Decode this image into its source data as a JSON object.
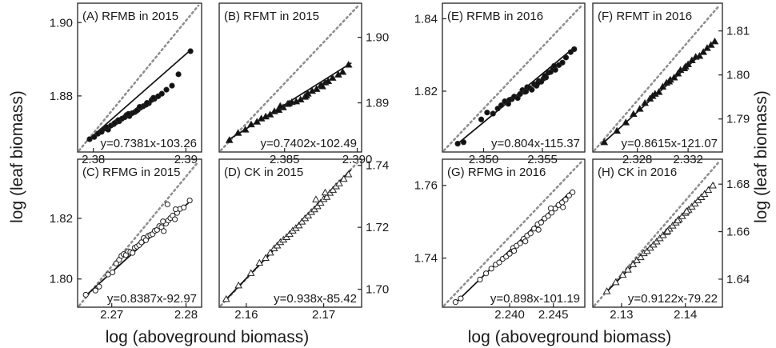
{
  "figure": {
    "xlabel_left": "log (aboveground biomass)",
    "xlabel_right": "log (aboveground biomass)",
    "ylabel_left": "log (leaf biomass)",
    "ylabel_right": "log (leaf biomass)"
  },
  "chart_data": [
    {
      "type": "scatter",
      "title": "(A) RFMB in 2015",
      "equation": "y=0.7381x-103.26",
      "marker": "filled-circle",
      "xlim": [
        2.3783,
        2.3917
      ],
      "ylim": [
        1.8647,
        1.9053
      ],
      "xticks": [
        2.38,
        2.39
      ],
      "yticks": [
        1.88,
        1.9
      ],
      "xtick_side": "bottom",
      "ytick_side": "left",
      "fit": {
        "x": [
          2.3793,
          2.3905
        ],
        "y": [
          1.8677,
          1.8925
        ]
      },
      "x": [
        2.3796,
        2.3801,
        2.3805,
        2.3809,
        2.3812,
        2.3816,
        2.3819,
        2.3822,
        2.3825,
        2.3828,
        2.3831,
        2.3834,
        2.3836,
        2.3839,
        2.3842,
        2.3845,
        2.3848,
        2.3851,
        2.3854,
        2.3857,
        2.386,
        2.3863,
        2.3866,
        2.387,
        2.3874,
        2.3879,
        2.3885,
        2.3892,
        2.3905,
        2.3814,
        2.3827,
        2.3838,
        2.3847,
        2.3858,
        2.3865,
        2.3823,
        2.385
      ],
      "y": [
        1.8682,
        1.8688,
        1.8697,
        1.8702,
        1.8711,
        1.8708,
        1.8719,
        1.8723,
        1.8729,
        1.8731,
        1.8738,
        1.8742,
        1.8748,
        1.8745,
        1.8753,
        1.8756,
        1.8762,
        1.8768,
        1.8772,
        1.8776,
        1.878,
        1.8789,
        1.8792,
        1.8799,
        1.8806,
        1.8817,
        1.8828,
        1.8859,
        1.8922,
        1.8715,
        1.8734,
        1.8751,
        1.876,
        1.8781,
        1.8795,
        1.8726,
        1.877
      ]
    },
    {
      "type": "scatter",
      "title": "(B) RFMT in 2015",
      "equation": "y=0.7402x-102.49",
      "marker": "filled-triangle",
      "xlim": [
        2.3805,
        2.3903
      ],
      "ylim": [
        1.8825,
        1.9052
      ],
      "xticks": [
        2.385,
        2.39
      ],
      "yticks": [
        1.89,
        1.9
      ],
      "xtick_side": "bottom",
      "ytick_side": "right",
      "fit": {
        "x": [
          2.3811,
          2.3896
        ],
        "y": [
          1.8843,
          1.8961
        ]
      },
      "x": [
        2.3812,
        2.3818,
        2.3823,
        2.3827,
        2.3831,
        2.3834,
        2.3837,
        2.384,
        2.3843,
        2.3846,
        2.3849,
        2.3852,
        2.3855,
        2.3858,
        2.3861,
        2.3864,
        2.3866,
        2.3869,
        2.3872,
        2.3875,
        2.3878,
        2.388,
        2.3883,
        2.3887,
        2.389,
        2.3894,
        2.3847,
        2.3853,
        2.3865,
        2.3876
      ],
      "y": [
        1.8843,
        1.8854,
        1.8859,
        1.8867,
        1.8871,
        1.8876,
        1.8879,
        1.8882,
        1.8887,
        1.8889,
        1.8893,
        1.8898,
        1.8901,
        1.8902,
        1.8905,
        1.8909,
        1.8914,
        1.8918,
        1.8921,
        1.8927,
        1.8931,
        1.8933,
        1.8938,
        1.8943,
        1.8947,
        1.8958,
        1.8895,
        1.8899,
        1.8911,
        1.8925
      ]
    },
    {
      "type": "scatter",
      "title": "(C) RFMG in 2015",
      "equation": "y=0.8387x-92.97",
      "marker": "open-circle",
      "xlim": [
        2.2654,
        2.2821
      ],
      "ylim": [
        1.7907,
        1.8395
      ],
      "xticks": [
        2.27,
        2.28
      ],
      "yticks": [
        1.8,
        1.82
      ],
      "xtick_side": "bottom",
      "ytick_side": "left",
      "fit": {
        "x": [
          2.2665,
          2.2805
        ],
        "y": [
          1.7945,
          1.8255
        ]
      },
      "x": [
        2.2665,
        2.2678,
        2.2683,
        2.2695,
        2.2701,
        2.2706,
        2.271,
        2.2713,
        2.2716,
        2.2719,
        2.2722,
        2.2725,
        2.2728,
        2.2731,
        2.2734,
        2.2737,
        2.274,
        2.2743,
        2.2746,
        2.2749,
        2.2752,
        2.2755,
        2.2758,
        2.2761,
        2.2764,
        2.2767,
        2.277,
        2.2773,
        2.2776,
        2.2779,
        2.2782,
        2.2785,
        2.2788,
        2.2792,
        2.2797,
        2.2805,
        2.2775,
        2.2786,
        2.2769
      ],
      "y": [
        1.7948,
        1.7962,
        1.7975,
        1.8015,
        1.8022,
        1.8051,
        1.8063,
        1.8076,
        1.8082,
        1.8079,
        1.8091,
        1.8089,
        1.8086,
        1.8103,
        1.8107,
        1.8112,
        1.8121,
        1.8135,
        1.8128,
        1.8142,
        1.8145,
        1.8148,
        1.8159,
        1.8162,
        1.8174,
        1.8171,
        1.8158,
        1.8183,
        1.8193,
        1.8201,
        1.8209,
        1.8197,
        1.8218,
        1.8231,
        1.8236,
        1.8259,
        1.8246,
        1.823,
        1.819
      ]
    },
    {
      "type": "scatter",
      "title": "(D) CK in 2015",
      "equation": "y=0.938x-85.42",
      "marker": "open-triangle",
      "xlim": [
        2.1565,
        2.1749
      ],
      "ylim": [
        1.6942,
        1.742
      ],
      "xticks": [
        2.16,
        2.17
      ],
      "yticks": [
        1.7,
        1.72,
        1.74
      ],
      "xtick_side": "bottom",
      "ytick_side": "right",
      "fit": {
        "x": [
          2.1573,
          2.1735
        ],
        "y": [
          1.6965,
          1.7385
        ]
      },
      "x": [
        2.1574,
        2.159,
        2.1606,
        2.1617,
        2.1625,
        2.1631,
        2.1636,
        2.164,
        2.1644,
        2.1648,
        2.1652,
        2.1656,
        2.166,
        2.1664,
        2.1668,
        2.1672,
        2.1676,
        2.168,
        2.1684,
        2.1688,
        2.1692,
        2.1696,
        2.17,
        2.1704,
        2.1708,
        2.1712,
        2.1716,
        2.172,
        2.1726,
        2.1732,
        2.169,
        2.1702
      ],
      "y": [
        1.6968,
        1.7012,
        1.7052,
        1.7085,
        1.7101,
        1.7118,
        1.7132,
        1.7141,
        1.7152,
        1.716,
        1.7168,
        1.7178,
        1.7189,
        1.7197,
        1.7206,
        1.7218,
        1.7229,
        1.7238,
        1.7249,
        1.7258,
        1.7268,
        1.7279,
        1.7291,
        1.7298,
        1.7311,
        1.7321,
        1.7332,
        1.7342,
        1.7356,
        1.7371,
        1.729,
        1.7312
      ]
    },
    {
      "type": "scatter",
      "title": "(E) RFMB in 2016",
      "equation": "y=0.804x-115.37",
      "marker": "filled-circle",
      "xlim": [
        2.3465,
        2.3586
      ],
      "ylim": [
        1.8032,
        1.8443
      ],
      "xticks": [
        2.35,
        2.355
      ],
      "yticks": [
        1.82,
        1.84
      ],
      "xtick_side": "bottom",
      "ytick_side": "left",
      "fit": {
        "x": [
          2.3478,
          2.3576
        ],
        "y": [
          1.8055,
          1.8318
        ]
      },
      "x": [
        2.3478,
        2.3483,
        2.3498,
        2.3503,
        2.3508,
        2.3512,
        2.3515,
        2.3518,
        2.3521,
        2.3524,
        2.3526,
        2.3529,
        2.3531,
        2.3533,
        2.3535,
        2.3537,
        2.3539,
        2.3541,
        2.3543,
        2.3545,
        2.3547,
        2.3549,
        2.3551,
        2.3553,
        2.3555,
        2.3557,
        2.3559,
        2.3561,
        2.3564,
        2.3567,
        2.357,
        2.3574,
        2.3577,
        2.3522,
        2.3536,
        2.3546,
        2.3552,
        2.356
      ],
      "y": [
        1.8055,
        1.8059,
        1.8122,
        1.8141,
        1.8138,
        1.8152,
        1.8161,
        1.8172,
        1.8165,
        1.8178,
        1.8185,
        1.8181,
        1.8192,
        1.8203,
        1.8198,
        1.8211,
        1.8209,
        1.8204,
        1.8219,
        1.8215,
        1.8228,
        1.8226,
        1.8235,
        1.8238,
        1.8251,
        1.8253,
        1.8262,
        1.8259,
        1.8272,
        1.8279,
        1.8293,
        1.8308,
        1.8316,
        1.8176,
        1.8199,
        1.8222,
        1.8242,
        1.827
      ]
    },
    {
      "type": "scatter",
      "title": "(F) RFMT in 2016",
      "equation": "y=0.8615x-121.07",
      "marker": "filled-triangle",
      "xlim": [
        2.3245,
        2.3347
      ],
      "ylim": [
        1.7825,
        1.8163
      ],
      "xticks": [
        2.328,
        2.332
      ],
      "yticks": [
        1.79,
        1.8,
        1.81
      ],
      "xtick_side": "bottom",
      "ytick_side": "right",
      "fit": {
        "x": [
          2.3253,
          2.3342
        ],
        "y": [
          1.7845,
          1.8078
        ]
      },
      "x": [
        2.3254,
        2.3264,
        2.3271,
        2.3277,
        2.3282,
        2.3286,
        2.329,
        2.3294,
        2.3297,
        2.33,
        2.3303,
        2.3306,
        2.3309,
        2.3312,
        2.3314,
        2.3317,
        2.332,
        2.3323,
        2.3326,
        2.3329,
        2.3332,
        2.3335,
        2.3338,
        2.3341,
        2.3292,
        2.3305,
        2.3318
      ],
      "y": [
        1.7847,
        1.7873,
        1.7892,
        1.7911,
        1.7923,
        1.7936,
        1.7946,
        1.7957,
        1.7961,
        1.7973,
        1.7982,
        1.7989,
        1.7994,
        1.8003,
        1.8011,
        1.8015,
        1.8024,
        1.8033,
        1.8041,
        1.8043,
        1.8052,
        1.8061,
        1.8068,
        1.8076,
        1.7952,
        1.7985,
        1.8019
      ]
    },
    {
      "type": "scatter",
      "title": "(G) RFMG in 2016",
      "equation": "y=0.898x-101.19",
      "marker": "open-circle",
      "xlim": [
        2.2323,
        2.2486
      ],
      "ylim": [
        1.7265,
        1.7672
      ],
      "xticks": [
        2.24,
        2.245
      ],
      "yticks": [
        1.74,
        1.76
      ],
      "xtick_side": "bottom",
      "ytick_side": "left",
      "fit": {
        "x": [
          2.2338,
          2.2472
        ],
        "y": [
          1.7277,
          1.7588
        ]
      },
      "x": [
        2.2338,
        2.2344,
        2.2366,
        2.2373,
        2.2379,
        2.2384,
        2.2388,
        2.2392,
        2.2396,
        2.24,
        2.2404,
        2.2408,
        2.2412,
        2.2416,
        2.242,
        2.2424,
        2.2428,
        2.2432,
        2.2436,
        2.244,
        2.2444,
        2.2448,
        2.2452,
        2.2456,
        2.246,
        2.2464,
        2.2468,
        2.2472,
        2.2405,
        2.2418,
        2.2433,
        2.2447,
        2.2461
      ],
      "y": [
        1.7279,
        1.7289,
        1.7341,
        1.7358,
        1.7371,
        1.7382,
        1.7388,
        1.7398,
        1.7404,
        1.7412,
        1.7428,
        1.7434,
        1.7441,
        1.7453,
        1.7462,
        1.7468,
        1.7481,
        1.7493,
        1.7498,
        1.7509,
        1.7516,
        1.7525,
        1.7536,
        1.7546,
        1.7553,
        1.7561,
        1.7572,
        1.7581,
        1.742,
        1.7446,
        1.7478,
        1.7537,
        1.754
      ]
    },
    {
      "type": "scatter",
      "title": "(H) CK in 2016",
      "equation": "y=0.9122x-79.22",
      "marker": "open-triangle",
      "xlim": [
        2.1255,
        2.1458
      ],
      "ylim": [
        1.6282,
        1.6905
      ],
      "xticks": [
        2.13,
        2.14
      ],
      "yticks": [
        1.64,
        1.66,
        1.68
      ],
      "xtick_side": "bottom",
      "ytick_side": "right",
      "fit": {
        "x": [
          2.1276,
          2.1445
        ],
        "y": [
          1.6345,
          1.6805
        ]
      },
      "x": [
        2.1277,
        2.1291,
        2.1302,
        2.131,
        2.1318,
        2.1324,
        2.133,
        2.1335,
        2.134,
        2.1345,
        2.135,
        2.1355,
        2.136,
        2.1365,
        2.137,
        2.1375,
        2.138,
        2.1385,
        2.139,
        2.1395,
        2.14,
        2.1405,
        2.141,
        2.1415,
        2.142,
        2.1425,
        2.143,
        2.1436,
        2.1443,
        2.1372,
        2.1388,
        2.1402
      ],
      "y": [
        1.6349,
        1.6387,
        1.6418,
        1.644,
        1.6462,
        1.6479,
        1.6492,
        1.6509,
        1.6518,
        1.6532,
        1.6545,
        1.6558,
        1.6572,
        1.6585,
        1.6598,
        1.6612,
        1.6625,
        1.6638,
        1.6652,
        1.6665,
        1.6679,
        1.6692,
        1.6705,
        1.6718,
        1.6732,
        1.6745,
        1.6758,
        1.6775,
        1.6794,
        1.6602,
        1.6647,
        1.6686
      ]
    }
  ]
}
